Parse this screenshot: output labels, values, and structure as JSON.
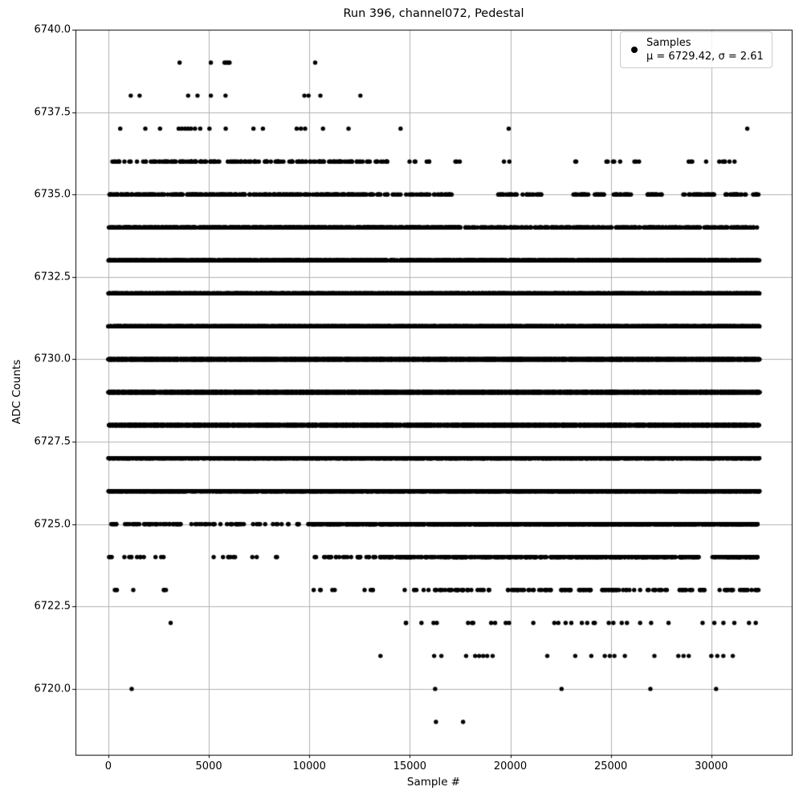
{
  "figure": {
    "title": "Run 396, channel072, Pedestal",
    "xlabel": "Sample #",
    "ylabel": "ADC Counts"
  },
  "legend": {
    "line1": "Samples",
    "line2": "μ = 6729.42, σ = 2.61"
  },
  "chart_data": {
    "type": "scatter",
    "title": "Run 396, channel072, Pedestal",
    "xlabel": "Sample #",
    "ylabel": "ADC Counts",
    "legend_entry": "Samples",
    "legend_stats": "μ = 6729.42, σ = 2.61",
    "stats": {
      "mu": 6729.42,
      "sigma": 2.61
    },
    "grid": true,
    "legend_position": "upper right",
    "xlim": [
      -1636,
      34004
    ],
    "ylim": [
      6718.0,
      6740.0
    ],
    "x_tick_values": [
      0,
      5000,
      10000,
      15000,
      20000,
      25000,
      30000
    ],
    "x_tick_labels": [
      "0",
      "5000",
      "10000",
      "15000",
      "20000",
      "25000",
      "30000"
    ],
    "y_tick_values": [
      6720.0,
      6722.5,
      6725.0,
      6727.5,
      6730.0,
      6732.5,
      6735.0,
      6737.5,
      6740.0
    ],
    "y_tick_labels": [
      "6720.0",
      "6722.5",
      "6725.0",
      "6727.5",
      "6730.0",
      "6732.5",
      "6735.0",
      "6737.5",
      "6740.0"
    ],
    "x_data_range": [
      0,
      32400
    ],
    "n_samples_approx": 32400,
    "adc_min": 6719,
    "adc_max": 6739,
    "marker": {
      "shape": "point",
      "color": "#000000",
      "radius_px": 2.7
    },
    "colors": {
      "dots": "#000000",
      "grid": "#b0b0b0",
      "spine": "#000000",
      "legend_border": "#cccccc"
    },
    "levels": [
      {
        "adc": 6739,
        "points": [
          3545,
          5100,
          5780,
          5870,
          5960,
          6030,
          10290
        ]
      },
      {
        "adc": 6738,
        "points": [
          1115,
          1555,
          3970,
          4435,
          5100,
          5830,
          9755,
          9960,
          10550,
          12540
        ]
      },
      {
        "adc": 6737,
        "points": [
          590,
          1840,
          2570,
          3500,
          3650,
          3810,
          3960,
          4110,
          4310,
          4570,
          5030,
          5840,
          7220,
          7690,
          9370,
          9580,
          9790,
          10680,
          11950,
          14540,
          19920,
          31790
        ]
      },
      {
        "adc": 6736,
        "segments": [
          [
            0,
            13900,
            175
          ],
          [
            14600,
            16300,
            6
          ],
          [
            17200,
            18250,
            3
          ],
          [
            19600,
            20100,
            2
          ],
          [
            23200,
            23500,
            2
          ],
          [
            24650,
            25600,
            5
          ],
          [
            26100,
            26650,
            3
          ],
          [
            28600,
            29100,
            3
          ],
          [
            29700,
            31200,
            7
          ]
        ]
      },
      {
        "adc": 6735,
        "segments": [
          [
            0,
            13600,
            310
          ],
          [
            13600,
            17500,
            42
          ],
          [
            19400,
            21600,
            35
          ],
          [
            23100,
            24750,
            30
          ],
          [
            25100,
            26050,
            22
          ],
          [
            26800,
            27550,
            20
          ],
          [
            28550,
            30250,
            32
          ],
          [
            30700,
            32350,
            30
          ]
        ]
      },
      {
        "adc": 6734,
        "segments": [
          [
            0,
            17500,
            780
          ],
          [
            17500,
            32400,
            340
          ]
        ]
      },
      {
        "adc": 6733,
        "segments": [
          [
            0,
            32400,
            1900
          ]
        ]
      },
      {
        "adc": 6732,
        "segments": [
          [
            0,
            32400,
            3000
          ]
        ]
      },
      {
        "adc": 6731,
        "segments": [
          [
            0,
            32400,
            4100
          ]
        ]
      },
      {
        "adc": 6730,
        "segments": [
          [
            0,
            32400,
            4800
          ]
        ]
      },
      {
        "adc": 6729,
        "segments": [
          [
            0,
            32400,
            4900
          ]
        ]
      },
      {
        "adc": 6728,
        "segments": [
          [
            0,
            32400,
            4300
          ]
        ]
      },
      {
        "adc": 6727,
        "segments": [
          [
            0,
            4500,
            420
          ],
          [
            4500,
            5000,
            25
          ],
          [
            5000,
            32400,
            2800
          ]
        ]
      },
      {
        "adc": 6726,
        "segments": [
          [
            0,
            3900,
            280
          ],
          [
            3900,
            5200,
            45
          ],
          [
            5200,
            32400,
            1800
          ]
        ]
      },
      {
        "adc": 6725,
        "segments": [
          [
            100,
            3600,
            45
          ],
          [
            4100,
            9600,
            40
          ],
          [
            9900,
            16100,
            220
          ],
          [
            16100,
            32350,
            900
          ]
        ]
      },
      {
        "adc": 6724,
        "segments": [
          [
            0,
            3000,
            14
          ],
          [
            5200,
            9700,
            11
          ],
          [
            10100,
            12400,
            16
          ],
          [
            12400,
            16100,
            70
          ],
          [
            16100,
            29400,
            380
          ],
          [
            30000,
            32350,
            80
          ]
        ]
      },
      {
        "adc": 6723,
        "segments": [
          [
            300,
            450,
            3
          ],
          [
            1240,
            1240,
            1
          ],
          [
            2700,
            2950,
            3
          ],
          [
            10150,
            11450,
            5
          ],
          [
            12600,
            13200,
            4
          ],
          [
            14250,
            16050,
            6
          ],
          [
            16100,
            19000,
            32
          ],
          [
            19700,
            24100,
            48
          ],
          [
            24500,
            27800,
            32
          ],
          [
            28300,
            29700,
            16
          ],
          [
            30200,
            32350,
            22
          ]
        ]
      },
      {
        "adc": 6722,
        "segments": [
          [
            3100,
            3100,
            1
          ],
          [
            14740,
            14870,
            2
          ],
          [
            15580,
            15580,
            1
          ],
          [
            16180,
            16180,
            1
          ],
          [
            16300,
            32350,
            30
          ]
        ]
      },
      {
        "adc": 6721,
        "points": [
          13540,
          16210,
          16570,
          17800,
          18250,
          18450,
          18650,
          18850,
          19120,
          21840,
          23230,
          24030,
          24700,
          24950,
          25180,
          25700,
          27170,
          28360,
          28620,
          28880,
          30000,
          30300,
          30600,
          31070
        ]
      },
      {
        "adc": 6720,
        "points": [
          1160,
          16260,
          22550,
          26970,
          30240
        ]
      },
      {
        "adc": 6719,
        "points": [
          16300,
          17650
        ]
      }
    ]
  }
}
